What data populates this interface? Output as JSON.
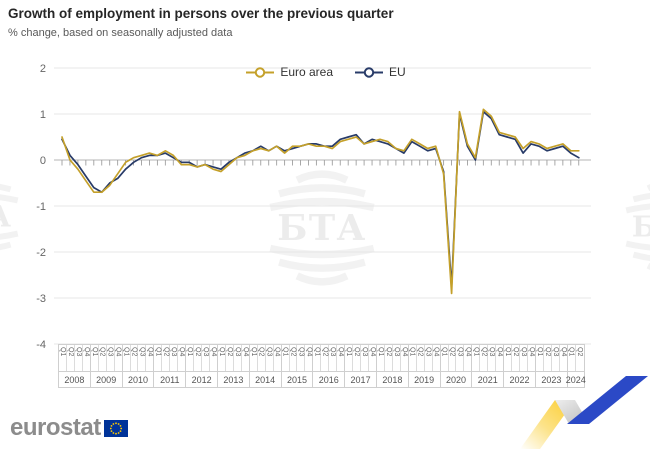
{
  "title": "Growth of employment in persons over the previous quarter",
  "subtitle": "% change, based on seasonally adjusted data",
  "watermark_text": "БТА",
  "footer": {
    "logo_text": "eurostat"
  },
  "colors": {
    "euro_area": "#C4A02A",
    "eu": "#283B68",
    "grid": "#e7e7e7",
    "zero_line": "#b5b5b5",
    "tick": "#9e9e9e",
    "axis_text": "#666666",
    "flag_blue": "#003399",
    "flag_star": "#FFCC00",
    "ribbon_yellow": "#FBCC2C",
    "ribbon_gray": "#BDBDBD",
    "ribbon_blue": "#2B49C6"
  },
  "chart_data": {
    "type": "line",
    "title": "Growth of employment in persons over the previous quarter",
    "xlabel": "",
    "ylabel": "% change",
    "ylim": [
      -4,
      2
    ],
    "yticks": [
      2,
      1,
      0,
      -1,
      -2,
      -3,
      -4
    ],
    "grid": "horizontal",
    "legend_position": "top",
    "x_start": "2008-Q1",
    "x_end": "2024-Q2",
    "quarter_labels": [
      "Q1",
      "Q2",
      "Q3",
      "Q4"
    ],
    "years": [
      {
        "label": "2008",
        "quarters": 4
      },
      {
        "label": "2009",
        "quarters": 4
      },
      {
        "label": "2010",
        "quarters": 4
      },
      {
        "label": "2011",
        "quarters": 4
      },
      {
        "label": "2012",
        "quarters": 4
      },
      {
        "label": "2013",
        "quarters": 4
      },
      {
        "label": "2014",
        "quarters": 4
      },
      {
        "label": "2015",
        "quarters": 4
      },
      {
        "label": "2016",
        "quarters": 4
      },
      {
        "label": "2017",
        "quarters": 4
      },
      {
        "label": "2018",
        "quarters": 4
      },
      {
        "label": "2019",
        "quarters": 4
      },
      {
        "label": "2020",
        "quarters": 4
      },
      {
        "label": "2021",
        "quarters": 4
      },
      {
        "label": "2022",
        "quarters": 4
      },
      {
        "label": "2023",
        "quarters": 4
      },
      {
        "label": "2024",
        "quarters": 2
      }
    ],
    "series": [
      {
        "name": "Euro area",
        "color": "#C4A02A",
        "values": [
          0.5,
          0.0,
          -0.2,
          -0.45,
          -0.7,
          -0.7,
          -0.55,
          -0.3,
          -0.05,
          0.05,
          0.1,
          0.15,
          0.1,
          0.2,
          0.1,
          -0.1,
          -0.1,
          -0.15,
          -0.1,
          -0.2,
          -0.25,
          -0.1,
          0.05,
          0.1,
          0.2,
          0.25,
          0.2,
          0.3,
          0.15,
          0.3,
          0.3,
          0.35,
          0.3,
          0.3,
          0.25,
          0.4,
          0.45,
          0.5,
          0.35,
          0.4,
          0.45,
          0.4,
          0.25,
          0.2,
          0.45,
          0.35,
          0.25,
          0.3,
          -0.3,
          -2.9,
          1.05,
          0.35,
          0.05,
          1.1,
          0.95,
          0.6,
          0.55,
          0.5,
          0.25,
          0.4,
          0.35,
          0.25,
          0.3,
          0.35,
          0.2,
          0.2
        ]
      },
      {
        "name": "EU",
        "color": "#283B68",
        "values": [
          0.45,
          0.1,
          -0.1,
          -0.35,
          -0.6,
          -0.7,
          -0.5,
          -0.4,
          -0.2,
          -0.05,
          0.05,
          0.1,
          0.1,
          0.15,
          0.05,
          -0.05,
          -0.05,
          -0.15,
          -0.1,
          -0.15,
          -0.2,
          -0.05,
          0.05,
          0.15,
          0.2,
          0.3,
          0.2,
          0.3,
          0.2,
          0.25,
          0.3,
          0.35,
          0.35,
          0.3,
          0.3,
          0.45,
          0.5,
          0.55,
          0.35,
          0.45,
          0.4,
          0.35,
          0.25,
          0.15,
          0.4,
          0.3,
          0.2,
          0.25,
          -0.25,
          -2.75,
          1.0,
          0.3,
          0.0,
          1.05,
          0.9,
          0.55,
          0.5,
          0.45,
          0.15,
          0.35,
          0.3,
          0.2,
          0.25,
          0.3,
          0.15,
          0.05
        ]
      }
    ]
  }
}
